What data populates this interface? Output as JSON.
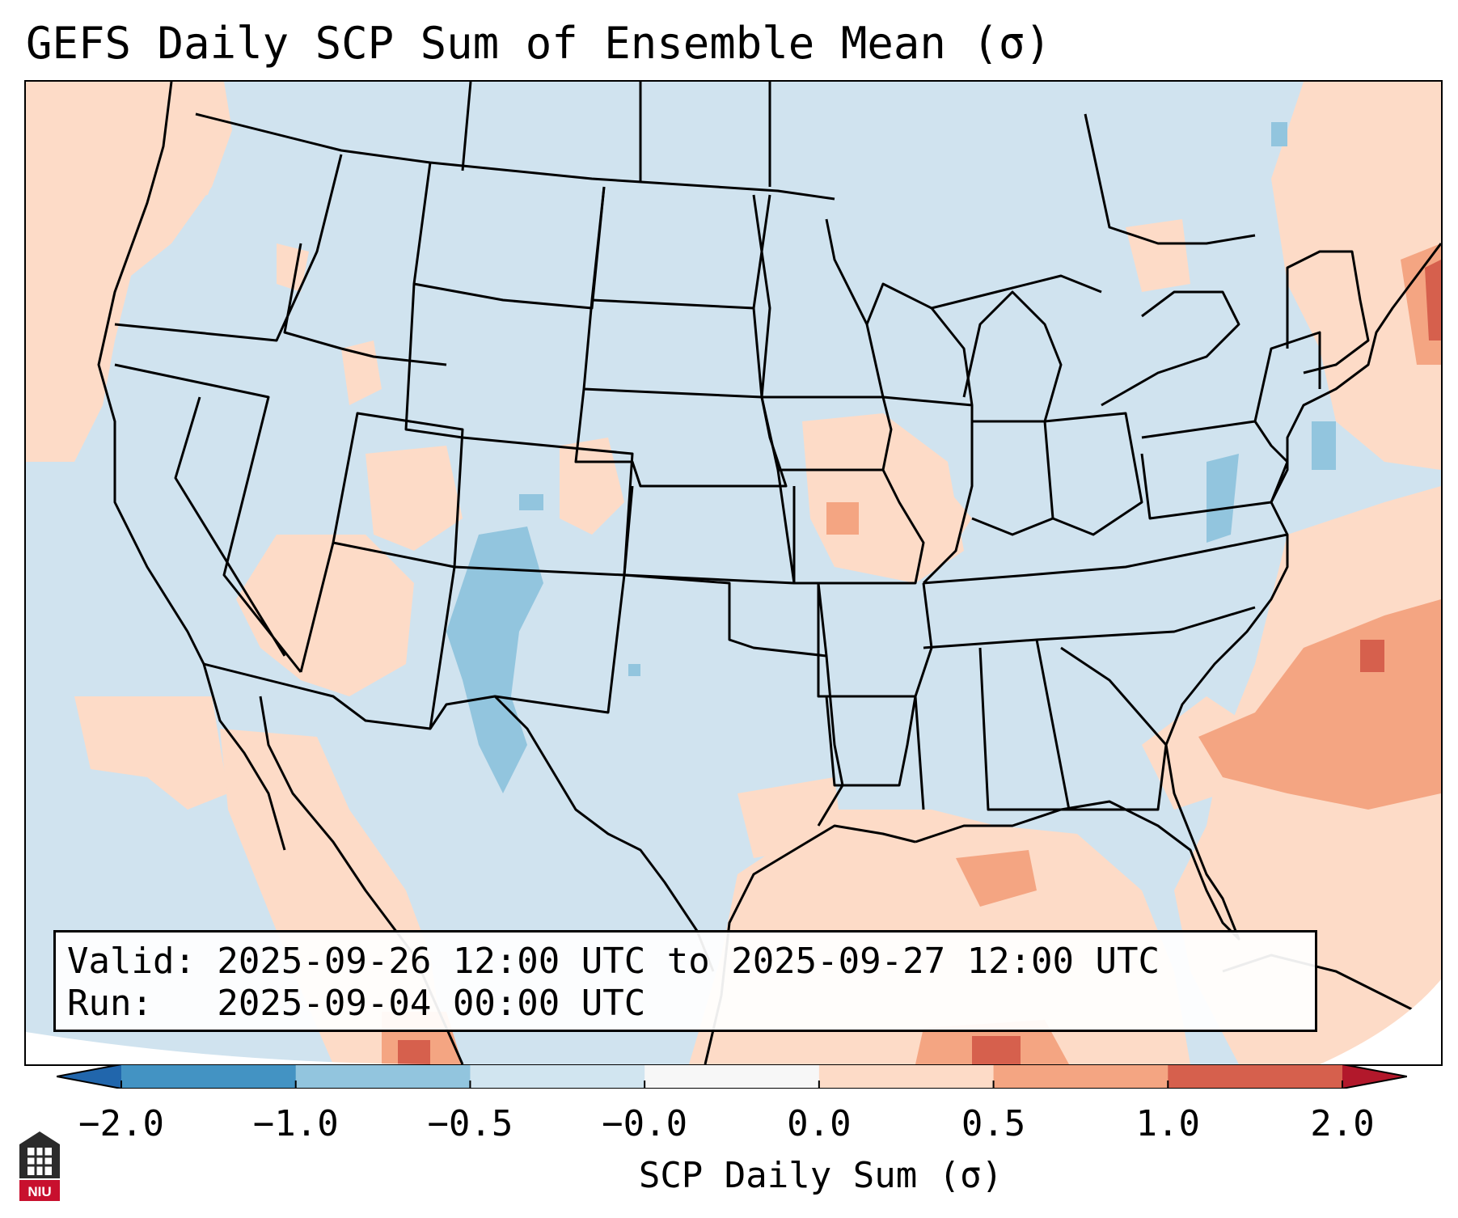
{
  "title": "GEFS Daily SCP Sum of Ensemble Mean (σ)",
  "info": {
    "valid_line": "Valid: 2025-09-26 12:00 UTC to 2025-09-27 12:00 UTC",
    "run_line": "Run:   2025-09-04 00:00 UTC"
  },
  "colorbar": {
    "label": "SCP Daily Sum (σ)",
    "ticks": [
      "−2.0",
      "−1.0",
      "−0.5",
      "−0.0",
      "0.0",
      "0.5",
      "1.0",
      "2.0"
    ],
    "bins": [
      {
        "from": -2.0,
        "to": -1.0,
        "color": "#4393c3"
      },
      {
        "from": -1.0,
        "to": -0.5,
        "color": "#92c5de"
      },
      {
        "from": -0.5,
        "to": -0.0,
        "color": "#d1e5f0"
      },
      {
        "from": -0.0,
        "to": 0.0,
        "color": "#f7f7f7"
      },
      {
        "from": 0.0,
        "to": 0.5,
        "color": "#fddbc7"
      },
      {
        "from": 0.5,
        "to": 1.0,
        "color": "#f4a582"
      },
      {
        "from": 1.0,
        "to": 2.0,
        "color": "#d6604d"
      }
    ],
    "under_color": "#2166ac",
    "over_color": "#b2182b"
  },
  "map": {
    "background_color": "#d0e3ef",
    "positive_color": "#fddbc7",
    "mid_positive_color": "#f4a582",
    "high_positive_color": "#d6604d",
    "negative_color": "#92c5de",
    "border_color": "#000000"
  },
  "logo": {
    "text": "NIU",
    "color": "#c8102e"
  }
}
